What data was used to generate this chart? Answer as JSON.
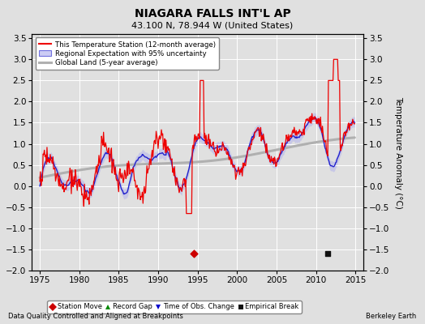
{
  "title": "NIAGARA FALLS INT'L AP",
  "subtitle": "43.100 N, 78.944 W (United States)",
  "xlabel_bottom": "Data Quality Controlled and Aligned at Breakpoints",
  "xlabel_right": "Berkeley Earth",
  "ylabel": "Temperature Anomaly (°C)",
  "xlim": [
    1974,
    2016
  ],
  "ylim": [
    -2.0,
    3.6
  ],
  "yticks": [
    -2,
    -1.5,
    -1,
    -0.5,
    0,
    0.5,
    1,
    1.5,
    2,
    2.5,
    3,
    3.5
  ],
  "xticks": [
    1975,
    1980,
    1985,
    1990,
    1995,
    2000,
    2005,
    2010,
    2015
  ],
  "legend_entries": [
    "This Temperature Station (12-month average)",
    "Regional Expectation with 95% uncertainty",
    "Global Land (5-year average)"
  ],
  "bg_color": "#e0e0e0",
  "grid_color": "#ffffff",
  "red_line_color": "#ee0000",
  "blue_line_color": "#2222cc",
  "blue_fill_color": "#aaaaee",
  "gray_line_color": "#b0b0b0",
  "marker_legend": [
    {
      "label": "Station Move",
      "color": "#cc0000",
      "marker": "D"
    },
    {
      "label": "Record Gap",
      "color": "#008800",
      "marker": "^"
    },
    {
      "label": "Time of Obs. Change",
      "color": "#0000cc",
      "marker": "v"
    },
    {
      "label": "Empirical Break",
      "color": "#111111",
      "marker": "s"
    }
  ],
  "station_move_x": [
    1994.5
  ],
  "station_move_y": [
    -1.6
  ],
  "empirical_break_x": [
    2011.5
  ],
  "empirical_break_y": [
    -1.6
  ]
}
